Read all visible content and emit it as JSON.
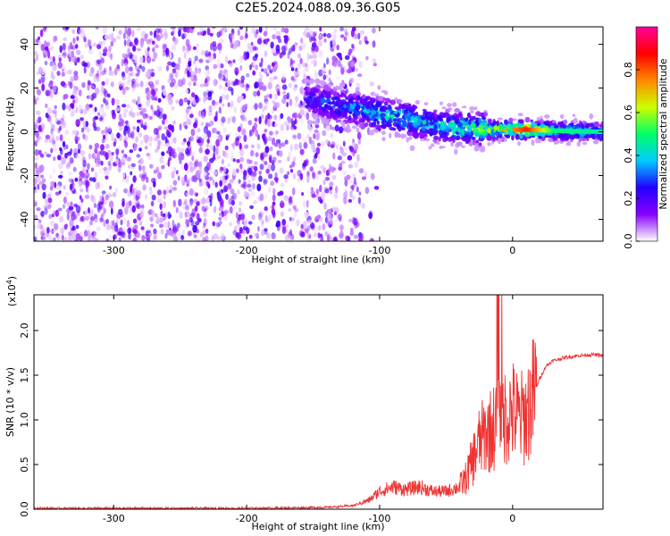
{
  "figure": {
    "title": "C2E5.2024.088.09.36.G05"
  },
  "chart_data": [
    {
      "type": "heatmap",
      "title": "C2E5.2024.088.09.36.G05",
      "xlabel": "Height of straight line (km)",
      "ylabel": "Frequency (Hz)",
      "xlim": [
        -360,
        68
      ],
      "ylim": [
        -50,
        48
      ],
      "x_ticks": [
        -300,
        -200,
        -100,
        0
      ],
      "y_ticks": [
        -40,
        -20,
        0,
        20,
        40
      ],
      "grid": false,
      "colorbar": {
        "label": "Normalized spectral amplitude",
        "range": [
          0.0,
          1.0
        ],
        "ticks": [
          0.0,
          0.2,
          0.4,
          0.6,
          0.8
        ],
        "colormap": [
          "#ffffff",
          "#8800ff",
          "#2200ff",
          "#00ccff",
          "#00ff66",
          "#ccff00",
          "#ff8800",
          "#ff0000",
          "#ff0099"
        ]
      },
      "noise_region_x": [
        -360,
        -130
      ],
      "signal_ridge": [
        {
          "x": -155,
          "freq": 15,
          "amp": 0.25
        },
        {
          "x": -140,
          "freq": 13,
          "amp": 0.3
        },
        {
          "x": -120,
          "freq": 11,
          "amp": 0.35
        },
        {
          "x": -100,
          "freq": 8,
          "amp": 0.45
        },
        {
          "x": -80,
          "freq": 6,
          "amp": 0.45
        },
        {
          "x": -60,
          "freq": 3,
          "amp": 0.4
        },
        {
          "x": -40,
          "freq": 2,
          "amp": 0.5
        },
        {
          "x": -20,
          "freq": 1,
          "amp": 0.6
        },
        {
          "x": 0,
          "freq": 1,
          "amp": 0.75
        },
        {
          "x": 10,
          "freq": 1,
          "amp": 0.85
        },
        {
          "x": 30,
          "freq": 0.5,
          "amp": 0.5
        },
        {
          "x": 68,
          "freq": 0,
          "amp": 0.45
        }
      ]
    },
    {
      "type": "line",
      "xlabel": "Height of straight line (km)",
      "ylabel": "SNR (10 * v/v)",
      "y_multiplier": "(x10",
      "y_multiplier_exp": "4",
      "y_multiplier_close": ")",
      "xlim": [
        -360,
        68
      ],
      "ylim": [
        0,
        2.4
      ],
      "x_ticks": [
        -300,
        -200,
        -100,
        0
      ],
      "y_ticks": [
        0.0,
        0.5,
        1.0,
        1.5,
        2.0
      ],
      "grid": false,
      "color": "#ee3333",
      "series": [
        {
          "x": [
            -360,
            -300,
            -200,
            -140,
            -120,
            -108,
            -100,
            -90,
            -80,
            -70,
            -60,
            -50,
            -40,
            -35,
            -30,
            -25,
            -20,
            -15,
            -10,
            -5,
            0,
            5,
            10,
            15,
            20,
            25,
            30,
            40,
            50,
            60,
            68
          ],
          "values": [
            0.01,
            0.01,
            0.01,
            0.02,
            0.04,
            0.1,
            0.2,
            0.25,
            0.22,
            0.25,
            0.2,
            0.2,
            0.25,
            0.35,
            0.55,
            0.75,
            0.85,
            0.9,
            1.0,
            1.05,
            1.1,
            1.0,
            1.05,
            1.25,
            1.45,
            1.6,
            1.66,
            1.7,
            1.72,
            1.73,
            1.72
          ]
        }
      ]
    }
  ]
}
